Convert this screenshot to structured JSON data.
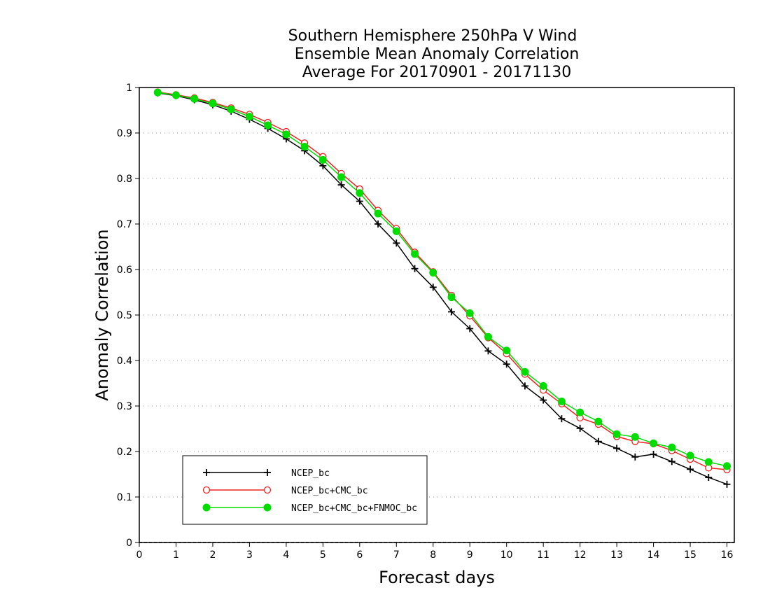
{
  "chart_data": {
    "type": "line",
    "title_lines": [
      "Southern Hemisphere 250hPa V Wind",
      "Ensemble Mean Anomaly Correlation",
      "Average For 20170901 - 20171130"
    ],
    "xlabel": "Forecast days",
    "ylabel": "Anomaly Correlation",
    "xlim": [
      0,
      16.2
    ],
    "ylim": [
      0,
      1
    ],
    "x_ticks": [
      "0",
      "1",
      "2",
      "3",
      "4",
      "5",
      "6",
      "7",
      "8",
      "9",
      "10",
      "11",
      "12",
      "13",
      "14",
      "15",
      "16"
    ],
    "y_ticks": [
      "0",
      "0.1",
      "0.2",
      "0.3",
      "0.4",
      "0.5",
      "0.6",
      "0.7",
      "0.8",
      "0.9",
      "1"
    ],
    "grid": "dotted-horizontal",
    "legend_position": "bottom-left",
    "x": [
      0.5,
      1,
      1.5,
      2,
      2.5,
      3,
      3.5,
      4,
      4.5,
      5,
      5.5,
      6,
      6.5,
      7,
      7.5,
      8,
      8.5,
      9,
      9.5,
      10,
      10.5,
      11,
      11.5,
      12,
      12.5,
      13,
      13.5,
      14,
      14.5,
      15,
      15.5,
      16
    ],
    "series": [
      {
        "name": "NCEP_bc",
        "color": "#000000",
        "marker": "plus",
        "values": [
          0.988,
          0.982,
          0.973,
          0.962,
          0.948,
          0.93,
          0.91,
          0.887,
          0.861,
          0.828,
          0.786,
          0.75,
          0.7,
          0.658,
          0.602,
          0.561,
          0.507,
          0.47,
          0.421,
          0.392,
          0.344,
          0.313,
          0.272,
          0.251,
          0.222,
          0.207,
          0.188,
          0.194,
          0.178,
          0.161,
          0.143,
          0.128
        ]
      },
      {
        "name": "NCEP_bc+CMC_bc",
        "color": "#ee2222",
        "marker": "open-circle",
        "values": [
          0.99,
          0.984,
          0.977,
          0.967,
          0.955,
          0.941,
          0.923,
          0.903,
          0.878,
          0.848,
          0.811,
          0.777,
          0.73,
          0.69,
          0.638,
          0.595,
          0.543,
          0.498,
          0.45,
          0.415,
          0.37,
          0.335,
          0.305,
          0.274,
          0.26,
          0.233,
          0.222,
          0.217,
          0.202,
          0.183,
          0.164,
          0.16
        ]
      },
      {
        "name": "NCEP_bc+CMC_bc+FNMOC_bc",
        "color": "#00dd00",
        "marker": "filled-circle",
        "values": [
          0.989,
          0.983,
          0.975,
          0.965,
          0.952,
          0.936,
          0.917,
          0.897,
          0.87,
          0.841,
          0.803,
          0.768,
          0.723,
          0.684,
          0.634,
          0.593,
          0.539,
          0.504,
          0.452,
          0.422,
          0.375,
          0.344,
          0.31,
          0.286,
          0.266,
          0.238,
          0.232,
          0.218,
          0.209,
          0.191,
          0.177,
          0.168
        ]
      }
    ]
  }
}
